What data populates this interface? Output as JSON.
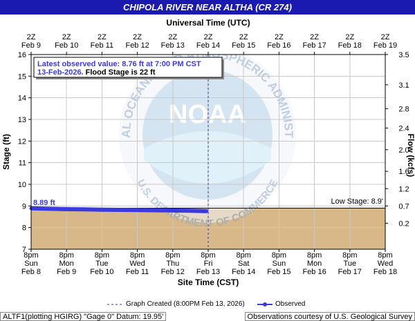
{
  "title": "CHIPOLA RIVER NEAR ALTHA (CR 274)",
  "top_axis_title": "Universal Time (UTC)",
  "bottom_axis_title": "Site Time (CST)",
  "left_axis_title": "Stage (ft)",
  "right_axis_title": "Flow (kcfs)",
  "annotation": {
    "line1": "Latest observed value: 8.76 ft at 7:00 PM CST",
    "line2_date": "13-Feb-2026.",
    "line2_rest": "Flood Stage is 22 ft"
  },
  "first_value_label": "8.89 ft",
  "low_stage_label": "Low Stage: 8.9'",
  "legend": {
    "created": "Graph Created (8:00PM Feb 13, 2026)",
    "observed": "Observed"
  },
  "footer": {
    "left": "ALTF1(plotting HGIRG) \"Gage 0\" Datum: 19.95'",
    "right": "Observations courtesy of U.S. Geological Survey"
  },
  "watermark": {
    "logo_text": "NOAA",
    "ring_text": "NATIONAL OCEANIC AND ATMOSPHERIC ADMINISTRATION",
    "lower_text": "U.S. DEPARTMENT OF COMMERCE"
  },
  "colors": {
    "title_bg": "#1a1ab0",
    "observed": "#3a3ae0",
    "below_low_stage_fill": "#d8b889",
    "created_line": "#3030c0",
    "annotation_text": "#3a3ae0"
  },
  "chart_data": {
    "type": "line",
    "ylabel": "Stage (ft)",
    "y2label": "Flow (kcfs)",
    "ylim": [
      7,
      16
    ],
    "y_ticks": [
      7,
      8,
      9,
      10,
      11,
      12,
      13,
      14,
      15,
      16
    ],
    "y2_ticks": [
      "0.2",
      "0.7",
      "1.2",
      "1.6",
      "2.0",
      "2.4",
      "2.8",
      "3.1",
      "3.5"
    ],
    "y2_tick_stage": [
      8.2,
      9.0,
      9.8,
      10.6,
      11.6,
      12.6,
      13.5,
      14.6,
      16.0
    ],
    "x_range_cst": [
      "2026-02-08 20:00",
      "2026-02-18 20:00"
    ],
    "bottom_ticks": [
      {
        "t": "8pm",
        "day": "Sun",
        "date": "Feb 8"
      },
      {
        "t": "8pm",
        "day": "Mon",
        "date": "Feb 9"
      },
      {
        "t": "8pm",
        "day": "Tue",
        "date": "Feb 10"
      },
      {
        "t": "8pm",
        "day": "Wed",
        "date": "Feb 11"
      },
      {
        "t": "8pm",
        "day": "Thu",
        "date": "Feb 12"
      },
      {
        "t": "8pm",
        "day": "Fri",
        "date": "Feb 13"
      },
      {
        "t": "8pm",
        "day": "Sat",
        "date": "Feb 14"
      },
      {
        "t": "8pm",
        "day": "Sun",
        "date": "Feb 15"
      },
      {
        "t": "8pm",
        "day": "Mon",
        "date": "Feb 16"
      },
      {
        "t": "8pm",
        "day": "Tue",
        "date": "Feb 17"
      },
      {
        "t": "8pm",
        "day": "Wed",
        "date": "Feb 18"
      }
    ],
    "top_ticks": [
      {
        "t": "2Z",
        "date": "Feb 9"
      },
      {
        "t": "2Z",
        "date": "Feb 10"
      },
      {
        "t": "2Z",
        "date": "Feb 11"
      },
      {
        "t": "2Z",
        "date": "Feb 12"
      },
      {
        "t": "2Z",
        "date": "Feb 13"
      },
      {
        "t": "2Z",
        "date": "Feb 14"
      },
      {
        "t": "2Z",
        "date": "Feb 15"
      },
      {
        "t": "2Z",
        "date": "Feb 16"
      },
      {
        "t": "2Z",
        "date": "Feb 17"
      },
      {
        "t": "2Z",
        "date": "Feb 18"
      },
      {
        "t": "2Z",
        "date": "Feb 19"
      }
    ],
    "low_stage": 8.9,
    "flood_stage": 22,
    "graph_created_cst": "2026-02-13 20:00",
    "series": [
      {
        "name": "Observed",
        "points": [
          [
            "2026-02-08 20:00",
            8.89
          ],
          [
            "2026-02-09 08:00",
            8.87
          ],
          [
            "2026-02-09 20:00",
            8.85
          ],
          [
            "2026-02-10 08:00",
            8.84
          ],
          [
            "2026-02-10 20:00",
            8.83
          ],
          [
            "2026-02-11 08:00",
            8.82
          ],
          [
            "2026-02-11 20:00",
            8.81
          ],
          [
            "2026-02-12 08:00",
            8.8
          ],
          [
            "2026-02-12 20:00",
            8.79
          ],
          [
            "2026-02-13 08:00",
            8.78
          ],
          [
            "2026-02-13 12:00",
            8.77
          ],
          [
            "2026-02-13 19:00",
            8.76
          ]
        ]
      }
    ]
  }
}
